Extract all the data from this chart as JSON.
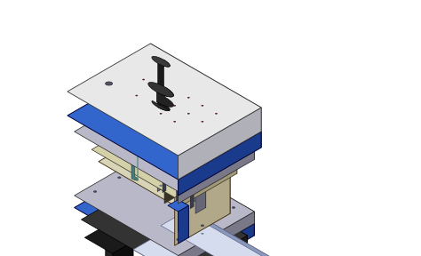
{
  "bg_color": "#ffffff",
  "blue_dark": "#1a3a8c",
  "blue_mid": "#2255bb",
  "blue_light": "#4477dd",
  "blue_top": "#3366cc",
  "gray_dark": "#2a2a2a",
  "gray_mid": "#555566",
  "gray_light": "#9999aa",
  "steel_top": "#b8b8c8",
  "steel_side1": "#787888",
  "steel_side2": "#888898",
  "beige_top": "#d8d4b8",
  "beige_side1": "#b0a888",
  "beige_side2": "#c0b898",
  "green_cyl": "#4a7a7a",
  "green_cyl_hi": "#6aaa9a",
  "black_post": "#1a1a1a",
  "hole_red": "#6b2020",
  "strip_top": "#d4dcee",
  "strip_side": "#8899bb",
  "blank_color": "#d8d4c0",
  "white_plate_top": "#e8e8e8",
  "white_plate_side": "#b0b0b8"
}
